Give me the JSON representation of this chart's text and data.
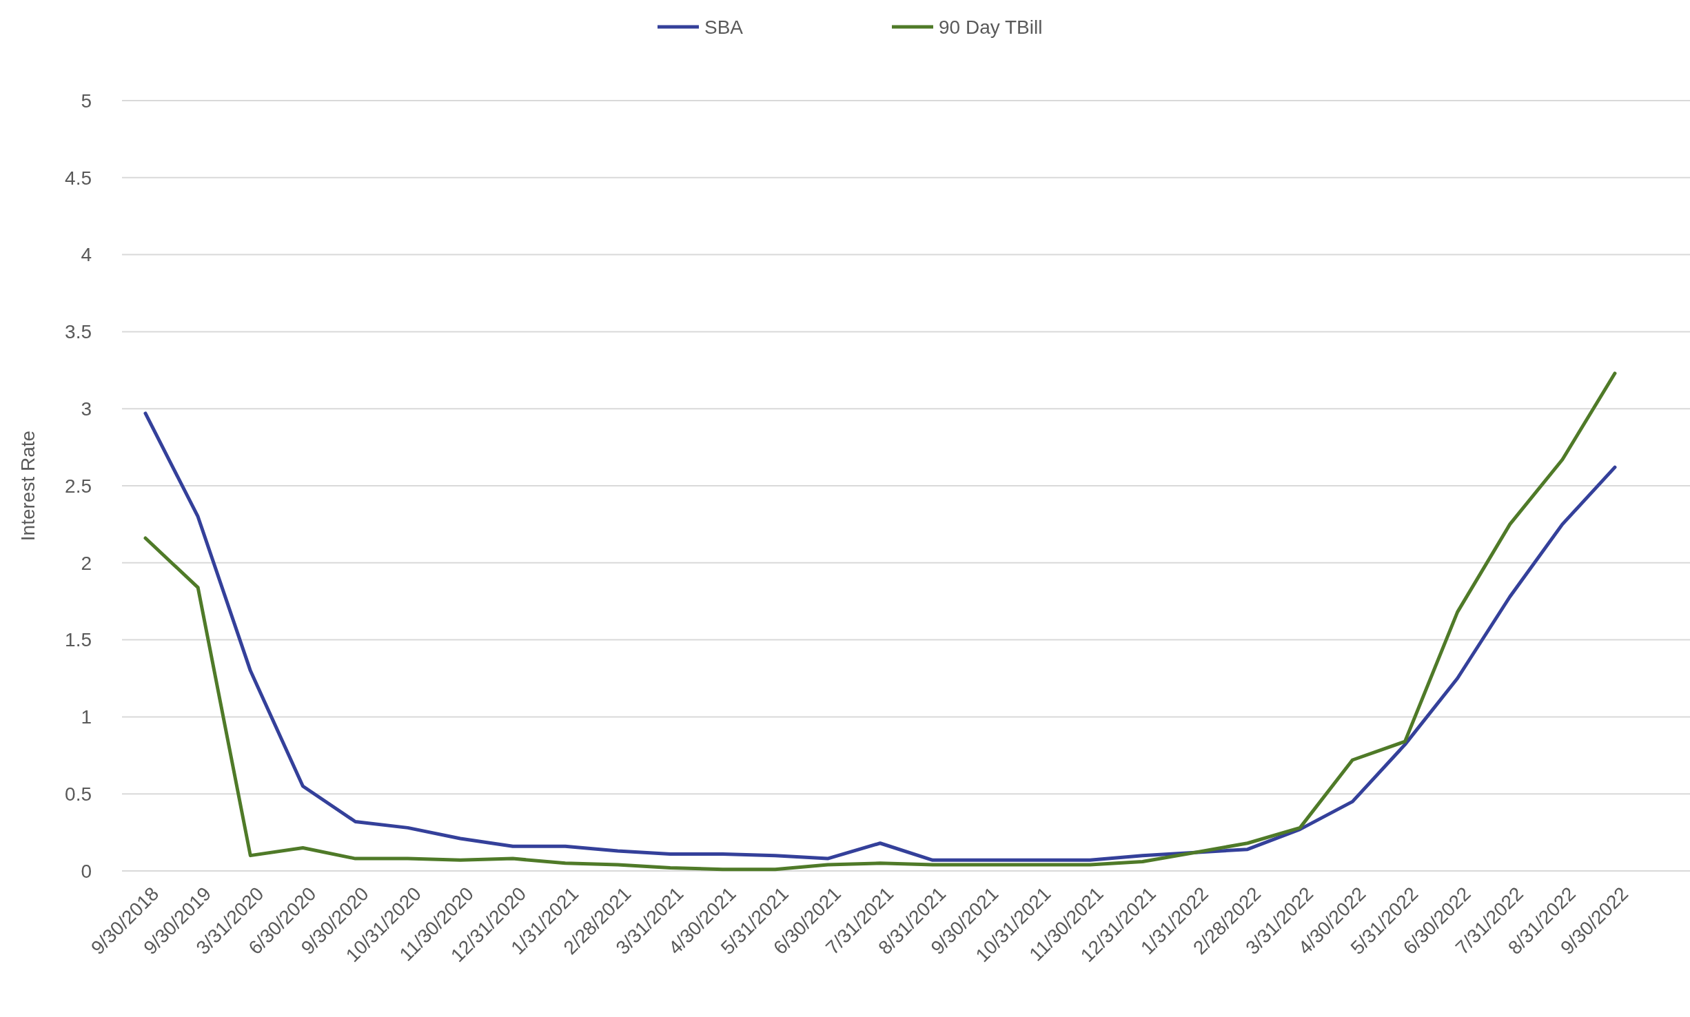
{
  "chart_data": {
    "type": "line",
    "ylabel": "Interest Rate",
    "categories": [
      "9/30/2018",
      "9/30/2019",
      "3/31/2020",
      "6/30/2020",
      "9/30/2020",
      "10/31/2020",
      "11/30/2020",
      "12/31/2020",
      "1/31/2021",
      "2/28/2021",
      "3/31/2021",
      "4/30/2021",
      "5/31/2021",
      "6/30/2021",
      "7/31/2021",
      "8/31/2021",
      "9/30/2021",
      "10/31/2021",
      "11/30/2021",
      "12/31/2021",
      "1/31/2022",
      "2/28/2022",
      "3/31/2022",
      "4/30/2022",
      "5/31/2022",
      "6/30/2022",
      "7/31/2022",
      "8/31/2022",
      "9/30/2022"
    ],
    "series": [
      {
        "name": "SBA",
        "color": "#34409a",
        "values": [
          2.97,
          2.3,
          1.3,
          0.55,
          0.32,
          0.28,
          0.21,
          0.16,
          0.16,
          0.13,
          0.11,
          0.11,
          0.1,
          0.08,
          0.18,
          0.07,
          0.07,
          0.07,
          0.07,
          0.1,
          0.12,
          0.14,
          0.27,
          0.45,
          0.82,
          1.25,
          1.78,
          2.25,
          2.62
        ]
      },
      {
        "name": "90 Day TBill",
        "color": "#4f7a28",
        "values": [
          2.16,
          1.84,
          0.1,
          0.15,
          0.08,
          0.08,
          0.07,
          0.08,
          0.05,
          0.04,
          0.02,
          0.01,
          0.01,
          0.04,
          0.05,
          0.04,
          0.04,
          0.04,
          0.04,
          0.06,
          0.12,
          0.18,
          0.28,
          0.72,
          0.84,
          1.68,
          2.25,
          2.67,
          3.23
        ]
      }
    ],
    "ylim": [
      0,
      5
    ],
    "yticks": [
      0,
      0.5,
      1,
      1.5,
      2,
      2.5,
      3,
      3.5,
      4,
      4.5,
      5
    ],
    "grid": "y",
    "legend": "top",
    "marker": "none",
    "line_style": "solid"
  }
}
